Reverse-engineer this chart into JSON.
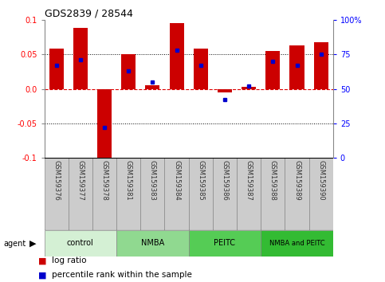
{
  "title": "GDS2839 / 28544",
  "samples": [
    "GSM159376",
    "GSM159377",
    "GSM159378",
    "GSM159381",
    "GSM159383",
    "GSM159384",
    "GSM159385",
    "GSM159386",
    "GSM159387",
    "GSM159388",
    "GSM159389",
    "GSM159390"
  ],
  "log_ratio": [
    0.058,
    0.088,
    -0.105,
    0.05,
    0.005,
    0.095,
    0.058,
    -0.005,
    0.003,
    0.055,
    0.063,
    0.068
  ],
  "percentile_rank": [
    67,
    71,
    22,
    63,
    55,
    78,
    67,
    42,
    52,
    70,
    67,
    75
  ],
  "groups": [
    {
      "label": "control",
      "start": 0,
      "end": 3,
      "color": "#d4f0d4"
    },
    {
      "label": "NMBA",
      "start": 3,
      "end": 6,
      "color": "#90d990"
    },
    {
      "label": "PEITC",
      "start": 6,
      "end": 9,
      "color": "#55cc55"
    },
    {
      "label": "NMBA and PEITC",
      "start": 9,
      "end": 12,
      "color": "#33bb33"
    }
  ],
  "ylim": [
    -0.1,
    0.1
  ],
  "yticks_left": [
    -0.1,
    -0.05,
    0.0,
    0.05,
    0.1
  ],
  "yticks_right": [
    0,
    25,
    50,
    75,
    100
  ],
  "bar_color": "#cc0000",
  "dot_color": "#0000cc",
  "hline_color": "#dd0000",
  "bar_width": 0.6,
  "legend_items": [
    "log ratio",
    "percentile rank within the sample"
  ],
  "legend_colors": [
    "#cc0000",
    "#0000cc"
  ],
  "sample_cell_color": "#cccccc",
  "sample_cell_edge": "#888888"
}
